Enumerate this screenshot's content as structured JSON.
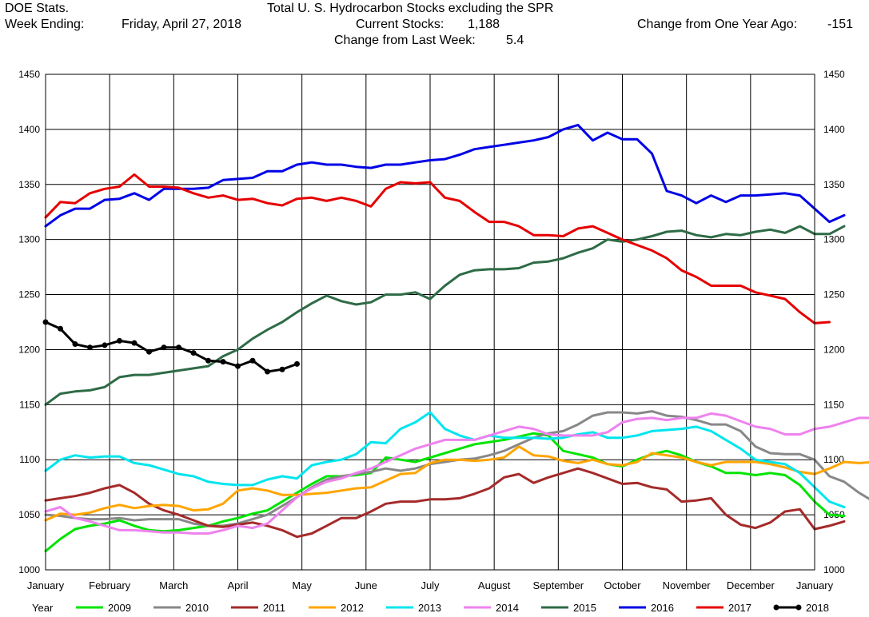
{
  "header": {
    "org": "DOE Stats.",
    "week_label": "Week Ending:",
    "week_date": "Friday, April 27, 2018",
    "title": "Total U. S. Hydrocarbon Stocks excluding the SPR",
    "current_label": "Current Stocks:",
    "current_value": "1,188",
    "week_change_label": "Change from Last Week:",
    "week_change_value": "5.4",
    "year_change_label": "Change from One Year Ago:",
    "year_change_value": "-151"
  },
  "chart_data": {
    "type": "line",
    "title": "Total U. S. Hydrocarbon Stocks excluding the SPR",
    "x_unit": "week of year",
    "xlim": [
      1,
      53
    ],
    "ylim": [
      1000,
      1450
    ],
    "y_ticks": [
      "1000",
      "1050",
      "1100",
      "1150",
      "1200",
      "1250",
      "1300",
      "1350",
      "1400",
      "1450"
    ],
    "month_labels": [
      "January",
      "February",
      "March",
      "April",
      "May",
      "June",
      "July",
      "August",
      "September",
      "October",
      "November",
      "December",
      "January"
    ],
    "grid": true,
    "legend_placement": "bottom",
    "legend_title": "Year",
    "series": [
      {
        "name": "2009",
        "color": "#00e400",
        "markers": false,
        "values": [
          1017,
          1028,
          1037,
          1040,
          1042,
          1045,
          1040,
          1036,
          1035,
          1036,
          1038,
          1040,
          1044,
          1047,
          1051,
          1054,
          1062,
          1070,
          1078,
          1085,
          1085,
          1086,
          1088,
          1102,
          1100,
          1098,
          1102,
          1106,
          1110,
          1114,
          1116,
          1118,
          1121,
          1124,
          1122,
          1108,
          1105,
          1102,
          1096,
          1094,
          1100,
          1105,
          1108,
          1104,
          1098,
          1094,
          1088,
          1088,
          1086,
          1088,
          1086,
          1077,
          1062,
          1050,
          1049
        ]
      },
      {
        "name": "2010",
        "color": "#888888",
        "markers": false,
        "values": [
          1050,
          1049,
          1047,
          1046,
          1046,
          1047,
          1045,
          1046,
          1046,
          1046,
          1042,
          1040,
          1040,
          1042,
          1046,
          1050,
          1058,
          1066,
          1075,
          1082,
          1085,
          1087,
          1089,
          1092,
          1090,
          1092,
          1096,
          1098,
          1100,
          1101,
          1104,
          1108,
          1114,
          1120,
          1124,
          1126,
          1132,
          1140,
          1143,
          1143,
          1142,
          1144,
          1140,
          1139,
          1136,
          1132,
          1132,
          1126,
          1112,
          1106,
          1105,
          1105,
          1100,
          1085,
          1080,
          1070,
          1062
        ]
      },
      {
        "name": "2011",
        "color": "#a52a2a",
        "markers": false,
        "values": [
          1063,
          1065,
          1067,
          1070,
          1074,
          1077,
          1070,
          1060,
          1054,
          1050,
          1045,
          1040,
          1039,
          1041,
          1043,
          1040,
          1036,
          1030,
          1033,
          1040,
          1047,
          1047,
          1053,
          1060,
          1062,
          1062,
          1064,
          1064,
          1065,
          1069,
          1074,
          1084,
          1087,
          1079,
          1084,
          1088,
          1092,
          1088,
          1083,
          1078,
          1079,
          1075,
          1073,
          1062,
          1063,
          1065,
          1050,
          1041,
          1038,
          1043,
          1053,
          1055,
          1037,
          1040,
          1044
        ]
      },
      {
        "name": "2012",
        "color": "#ffa500",
        "markers": false,
        "values": [
          1045,
          1051,
          1050,
          1052,
          1056,
          1059,
          1056,
          1058,
          1059,
          1058,
          1054,
          1055,
          1060,
          1072,
          1074,
          1072,
          1068,
          1068,
          1069,
          1070,
          1072,
          1074,
          1075,
          1081,
          1087,
          1088,
          1097,
          1100,
          1100,
          1099,
          1100,
          1102,
          1112,
          1104,
          1103,
          1099,
          1097,
          1100,
          1096,
          1095,
          1098,
          1106,
          1104,
          1102,
          1098,
          1095,
          1098,
          1098,
          1098,
          1096,
          1093,
          1089,
          1087,
          1092,
          1098,
          1097,
          1098,
          1090
        ]
      },
      {
        "name": "2013",
        "color": "#00e5ee",
        "markers": false,
        "values": [
          1090,
          1100,
          1104,
          1102,
          1103,
          1103,
          1097,
          1095,
          1091,
          1087,
          1085,
          1080,
          1078,
          1077,
          1077,
          1082,
          1085,
          1083,
          1095,
          1098,
          1100,
          1105,
          1116,
          1115,
          1128,
          1134,
          1143,
          1128,
          1122,
          1118,
          1122,
          1120,
          1120,
          1120,
          1119,
          1120,
          1123,
          1125,
          1120,
          1120,
          1122,
          1126,
          1127,
          1128,
          1130,
          1126,
          1118,
          1110,
          1100,
          1098,
          1096,
          1088,
          1075,
          1062,
          1057
        ]
      },
      {
        "name": "2014",
        "color": "#ee82ee",
        "markers": false,
        "values": [
          1053,
          1057,
          1047,
          1044,
          1040,
          1036,
          1036,
          1035,
          1034,
          1034,
          1033,
          1033,
          1036,
          1040,
          1038,
          1042,
          1054,
          1066,
          1074,
          1080,
          1083,
          1088,
          1092,
          1098,
          1104,
          1110,
          1114,
          1118,
          1118,
          1118,
          1122,
          1126,
          1130,
          1128,
          1123,
          1122,
          1122,
          1122,
          1125,
          1134,
          1137,
          1138,
          1136,
          1138,
          1138,
          1142,
          1140,
          1135,
          1130,
          1128,
          1123,
          1123,
          1128,
          1130,
          1134,
          1138,
          1138
        ]
      },
      {
        "name": "2015",
        "color": "#2e6b46",
        "markers": false,
        "values": [
          1150,
          1160,
          1162,
          1163,
          1166,
          1175,
          1177,
          1177,
          1179,
          1181,
          1183,
          1185,
          1194,
          1200,
          1210,
          1218,
          1225,
          1234,
          1242,
          1249,
          1244,
          1241,
          1243,
          1250,
          1250,
          1252,
          1246,
          1258,
          1268,
          1272,
          1273,
          1273,
          1274,
          1279,
          1280,
          1283,
          1288,
          1292,
          1300,
          1298,
          1300,
          1303,
          1307,
          1308,
          1304,
          1302,
          1305,
          1304,
          1307,
          1309,
          1306,
          1312,
          1305,
          1305,
          1312
        ]
      },
      {
        "name": "2016",
        "color": "#0000e6",
        "markers": false,
        "values": [
          1312,
          1322,
          1328,
          1328,
          1336,
          1337,
          1342,
          1336,
          1346,
          1346,
          1346,
          1347,
          1354,
          1355,
          1356,
          1362,
          1362,
          1368,
          1370,
          1368,
          1368,
          1366,
          1365,
          1368,
          1368,
          1370,
          1372,
          1373,
          1377,
          1382,
          1384,
          1386,
          1388,
          1390,
          1393,
          1400,
          1404,
          1390,
          1397,
          1391,
          1391,
          1378,
          1344,
          1340,
          1333,
          1340,
          1334,
          1340,
          1340,
          1341,
          1342,
          1340,
          1328,
          1316,
          1322
        ]
      },
      {
        "name": "2017",
        "color": "#e60000",
        "markers": false,
        "values": [
          1320,
          1334,
          1333,
          1342,
          1346,
          1348,
          1359,
          1348,
          1348,
          1347,
          1342,
          1338,
          1340,
          1336,
          1337,
          1333,
          1331,
          1337,
          1338,
          1335,
          1338,
          1335,
          1330,
          1346,
          1352,
          1351,
          1352,
          1338,
          1335,
          1325,
          1316,
          1316,
          1312,
          1304,
          1304,
          1303,
          1310,
          1312,
          1306,
          1300,
          1295,
          1290,
          1283,
          1272,
          1266,
          1258,
          1258,
          1258,
          1252,
          1249,
          1246,
          1234,
          1224,
          1225
        ]
      },
      {
        "name": "2018",
        "color": "#000000",
        "markers": true,
        "values": [
          1225,
          1219,
          1205,
          1202,
          1204,
          1208,
          1206,
          1198,
          1202,
          1202,
          1197,
          1190,
          1189,
          1185,
          1190,
          1180,
          1182,
          1187
        ]
      }
    ]
  }
}
